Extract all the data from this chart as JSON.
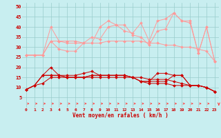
{
  "background_color": "#c8eef0",
  "grid_color": "#99cccc",
  "xlabel": "Vent moyen/en rafales ( km/h )",
  "x": [
    0,
    1,
    2,
    3,
    4,
    5,
    6,
    7,
    8,
    9,
    10,
    11,
    12,
    13,
    14,
    15,
    16,
    17,
    18,
    19,
    20,
    21,
    22,
    23
  ],
  "ylim": [
    0,
    52
  ],
  "yticks": [
    5,
    10,
    15,
    20,
    25,
    30,
    35,
    40,
    45,
    50
  ],
  "line_light1": [
    26,
    26,
    26,
    40,
    33,
    33,
    33,
    32,
    32,
    40,
    43,
    41,
    38,
    37,
    42,
    33,
    43,
    44,
    47,
    43,
    43,
    27,
    40,
    23
  ],
  "line_light2": [
    26,
    26,
    26,
    33,
    33,
    32,
    32,
    32,
    32,
    32,
    33,
    33,
    33,
    33,
    33,
    32,
    32,
    31,
    31,
    30,
    30,
    29,
    28,
    23
  ],
  "line_light3": [
    26,
    26,
    26,
    33,
    29,
    28,
    28,
    32,
    35,
    34,
    40,
    41,
    41,
    36,
    35,
    31,
    38,
    39,
    47,
    43,
    42,
    27,
    40,
    23
  ],
  "line_dark1": [
    9,
    11,
    16,
    20,
    16,
    16,
    16,
    17,
    18,
    16,
    16,
    16,
    16,
    15,
    13,
    13,
    17,
    17,
    16,
    16,
    11,
    11,
    10,
    8
  ],
  "line_dark2": [
    9,
    11,
    16,
    16,
    16,
    15,
    15,
    15,
    16,
    16,
    16,
    16,
    16,
    15,
    13,
    13,
    13,
    13,
    16,
    16,
    11,
    11,
    10,
    8
  ],
  "line_dark3": [
    9,
    11,
    16,
    16,
    16,
    15,
    15,
    15,
    16,
    16,
    16,
    16,
    16,
    15,
    13,
    12,
    12,
    12,
    11,
    11,
    11,
    11,
    10,
    8
  ],
  "line_dark4": [
    9,
    11,
    12,
    15,
    15,
    15,
    15,
    15,
    15,
    15,
    15,
    15,
    15,
    15,
    15,
    14,
    14,
    14,
    13,
    12,
    11,
    11,
    10,
    8
  ],
  "line_light_color": "#ff9999",
  "line_dark_color": "#cc0000",
  "arrow_color": "#ff4444"
}
